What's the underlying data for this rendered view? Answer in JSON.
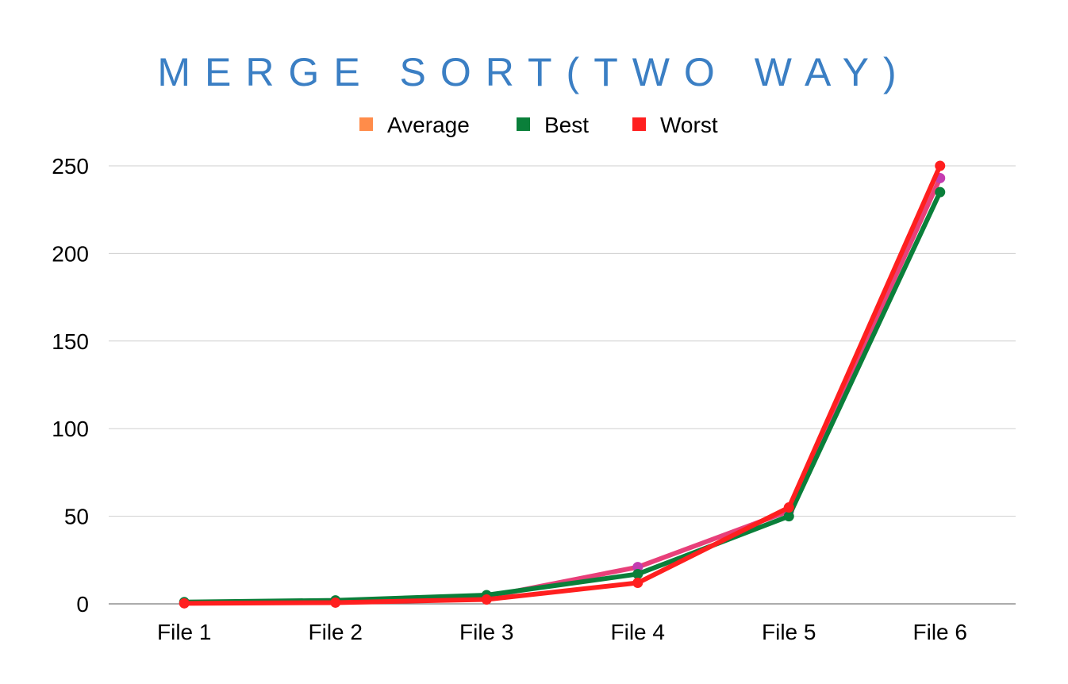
{
  "chart_data": {
    "type": "line",
    "title": "MERGE SORT(TWO WAY)",
    "title_color": "#3b7fc4",
    "categories": [
      "File 1",
      "File 2",
      "File 3",
      "File 4",
      "File 5",
      "File 6"
    ],
    "ylim": [
      0,
      250
    ],
    "yticks": [
      "0",
      "50",
      "100",
      "150",
      "200",
      "250"
    ],
    "grid": true,
    "legend_position": "top",
    "series": [
      {
        "name": "Average",
        "color": "#ff8c4a",
        "line_color": "#e8407a",
        "marker_color": "#c43cb0",
        "values": [
          0.5,
          1,
          4,
          21,
          53,
          243
        ]
      },
      {
        "name": "Best",
        "color": "#0a7f3a",
        "line_color": "#0a7f3a",
        "marker_color": "#0a7f3a",
        "values": [
          1,
          2,
          5,
          17,
          50,
          235
        ]
      },
      {
        "name": "Worst",
        "color": "#ff1f1f",
        "line_color": "#ff1f1f",
        "marker_color": "#ff1f1f",
        "values": [
          0.3,
          0.7,
          2.5,
          12,
          55,
          250
        ]
      }
    ]
  }
}
